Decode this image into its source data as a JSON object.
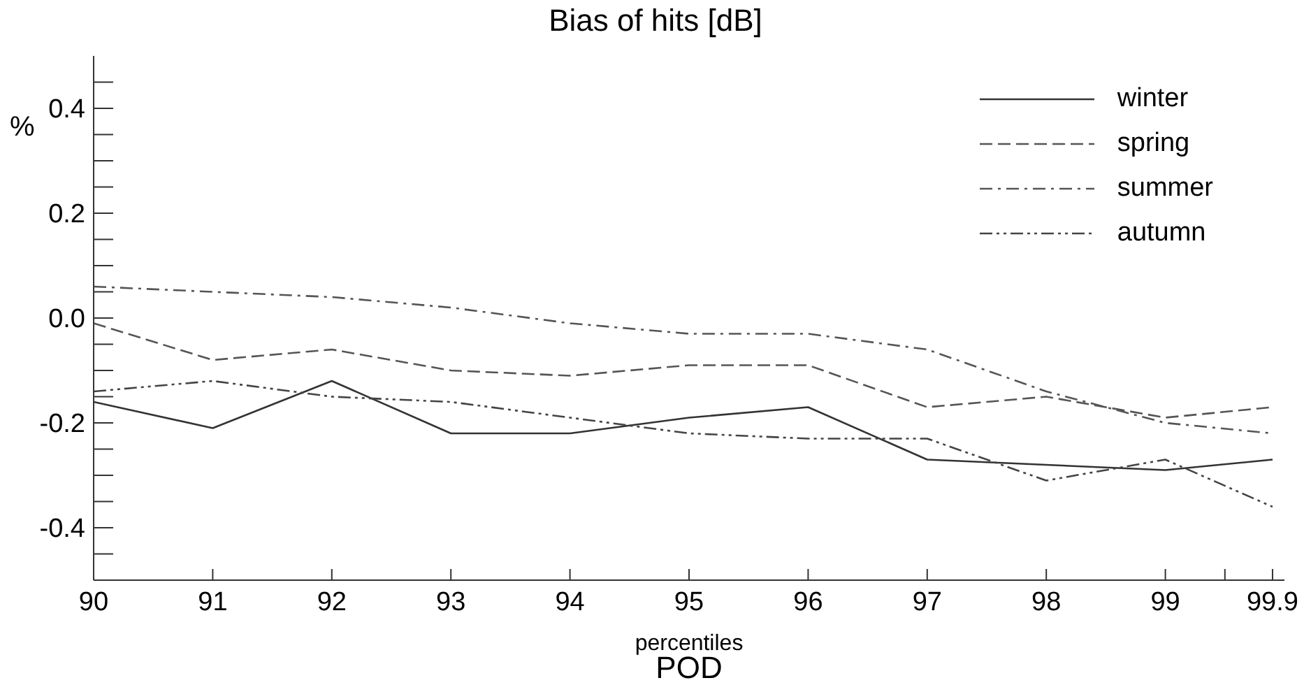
{
  "chart_data": {
    "type": "line",
    "title": "Bias of hits [dB]",
    "xlabel": "percentiles",
    "ylabel": "%",
    "annotations": [
      "POD"
    ],
    "x": [
      90,
      91,
      92,
      93,
      94,
      95,
      96,
      97,
      98,
      99,
      99.9
    ],
    "xlim": [
      90,
      100
    ],
    "xticks": [
      90,
      91,
      92,
      93,
      94,
      95,
      96,
      97,
      98,
      99,
      {
        "value": 99.5,
        "label": null
      },
      99.9
    ],
    "ylim": [
      -0.5,
      0.5
    ],
    "yticks": [
      {
        "value": -0.45,
        "label": null
      },
      -0.4,
      {
        "value": -0.35,
        "label": null
      },
      {
        "value": -0.3,
        "label": null
      },
      {
        "value": -0.25,
        "label": null
      },
      -0.2,
      {
        "value": -0.15,
        "label": null
      },
      {
        "value": -0.1,
        "label": null
      },
      {
        "value": -0.05,
        "label": null
      },
      {
        "value": 0,
        "label": "0.0"
      },
      {
        "value": 0.05,
        "label": null
      },
      {
        "value": 0.1,
        "label": null
      },
      {
        "value": 0.15,
        "label": null
      },
      0.2,
      {
        "value": 0.25,
        "label": null
      },
      {
        "value": 0.3,
        "label": null
      },
      {
        "value": 0.35,
        "label": null
      },
      0.4,
      {
        "value": 0.45,
        "label": null
      }
    ],
    "grid": false,
    "legend": "top right",
    "marker": "none",
    "series": [
      {
        "name": "winter",
        "color": "#333333",
        "line_style": "solid",
        "values": [
          -0.16,
          -0.21,
          -0.12,
          -0.22,
          -0.22,
          -0.19,
          -0.17,
          -0.27,
          -0.28,
          -0.29,
          -0.27
        ]
      },
      {
        "name": "spring",
        "color": "#555555",
        "line_style": "dashed",
        "values": [
          -0.01,
          -0.08,
          -0.06,
          -0.1,
          -0.11,
          -0.09,
          -0.09,
          -0.17,
          -0.15,
          -0.19,
          -0.17
        ]
      },
      {
        "name": "summer",
        "color": "#555555",
        "line_style": "dashdot",
        "values": [
          0.06,
          0.05,
          0.04,
          0.02,
          -0.01,
          -0.03,
          -0.03,
          -0.06,
          -0.14,
          -0.2,
          -0.22
        ]
      },
      {
        "name": "autumn",
        "color": "#444444",
        "line_style": "dashdotdot",
        "values": [
          -0.14,
          -0.12,
          -0.15,
          -0.16,
          -0.19,
          -0.22,
          -0.23,
          -0.23,
          -0.31,
          -0.27,
          -0.36
        ]
      }
    ]
  }
}
